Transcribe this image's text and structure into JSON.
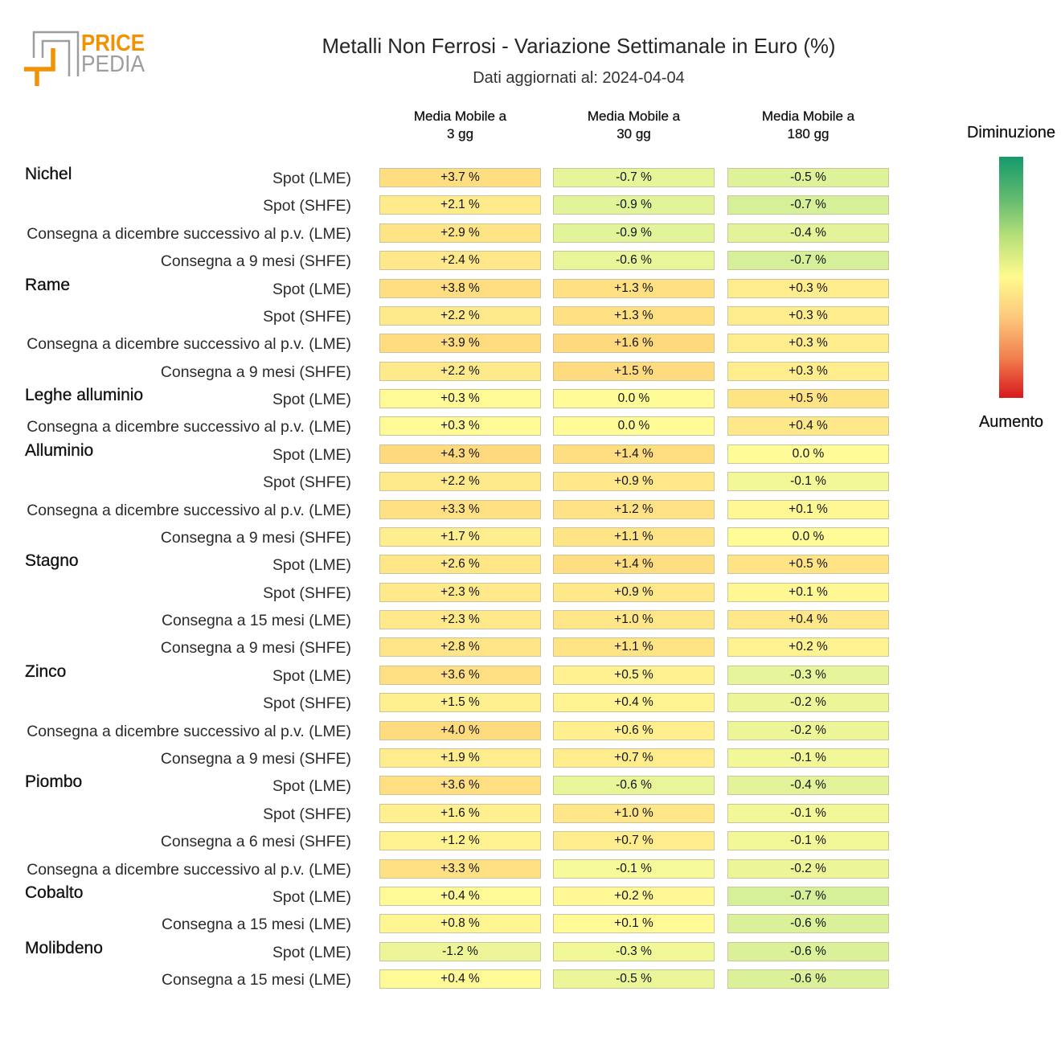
{
  "logo": {
    "word1": "PRICE",
    "word2": "PEDIA"
  },
  "colors": {
    "neutral": "#FFFC98",
    "increase": "#FFD97E",
    "decrease": "#D6F099",
    "cell_border": "#C9C49C",
    "logo_orange": "#F39200",
    "logo_grey": "#9D9D9C",
    "legend_gradient": [
      "#169A6B",
      "#5EB96F",
      "#B9E07A",
      "#FFFA8E",
      "#FDC87C",
      "#F1804F",
      "#D7191C"
    ]
  },
  "chart_data": {
    "type": "heatmap",
    "title": "Metalli Non Ferrosi - Variazione Settimanale in Euro (%)",
    "subtitle": "Dati aggiornati al: 2024-04-04",
    "columns": [
      {
        "line1": "Media Mobile a",
        "line2": "3 gg"
      },
      {
        "line1": "Media Mobile a",
        "line2": "30 gg"
      },
      {
        "line1": "Media Mobile a",
        "line2": "180 gg"
      }
    ],
    "legend": {
      "top": "Diminuzione",
      "bottom": "Aumento"
    },
    "groups": [
      {
        "name": "Nichel",
        "rows": [
          {
            "label": "Spot (LME)",
            "values": [
              3.7,
              -0.7,
              -0.5
            ],
            "cells": [
              "+3.7 %",
              "-0.7 %",
              "-0.5 %"
            ]
          },
          {
            "label": "Spot (SHFE)",
            "values": [
              2.1,
              -0.9,
              -0.7
            ],
            "cells": [
              "+2.1 %",
              "-0.9 %",
              "-0.7 %"
            ]
          },
          {
            "label": "Consegna a dicembre successivo al p.v. (LME)",
            "values": [
              2.9,
              -0.9,
              -0.4
            ],
            "cells": [
              "+2.9 %",
              "-0.9 %",
              "-0.4 %"
            ]
          },
          {
            "label": "Consegna a 9 mesi (SHFE)",
            "values": [
              2.4,
              -0.6,
              -0.7
            ],
            "cells": [
              "+2.4 %",
              "-0.6 %",
              "-0.7 %"
            ]
          }
        ]
      },
      {
        "name": "Rame",
        "rows": [
          {
            "label": "Spot (LME)",
            "values": [
              3.8,
              1.3,
              0.3
            ],
            "cells": [
              "+3.8 %",
              "+1.3 %",
              "+0.3 %"
            ]
          },
          {
            "label": "Spot (SHFE)",
            "values": [
              2.2,
              1.3,
              0.3
            ],
            "cells": [
              "+2.2 %",
              "+1.3 %",
              "+0.3 %"
            ]
          },
          {
            "label": "Consegna a dicembre successivo al p.v. (LME)",
            "values": [
              3.9,
              1.6,
              0.3
            ],
            "cells": [
              "+3.9 %",
              "+1.6 %",
              "+0.3 %"
            ]
          },
          {
            "label": "Consegna a 9 mesi (SHFE)",
            "values": [
              2.2,
              1.5,
              0.3
            ],
            "cells": [
              "+2.2 %",
              "+1.5 %",
              "+0.3 %"
            ]
          }
        ]
      },
      {
        "name": "Leghe alluminio",
        "rows": [
          {
            "label": "Spot (LME)",
            "values": [
              0.3,
              0.0,
              0.5
            ],
            "cells": [
              "+0.3 %",
              "0.0 %",
              "+0.5 %"
            ]
          },
          {
            "label": "Consegna a dicembre successivo al p.v. (LME)",
            "values": [
              0.3,
              0.0,
              0.4
            ],
            "cells": [
              "+0.3 %",
              "0.0 %",
              "+0.4 %"
            ]
          }
        ]
      },
      {
        "name": "Alluminio",
        "rows": [
          {
            "label": "Spot (LME)",
            "values": [
              4.3,
              1.4,
              0.0
            ],
            "cells": [
              "+4.3 %",
              "+1.4 %",
              "0.0 %"
            ]
          },
          {
            "label": "Spot (SHFE)",
            "values": [
              2.2,
              0.9,
              -0.1
            ],
            "cells": [
              "+2.2 %",
              "+0.9 %",
              "-0.1 %"
            ]
          },
          {
            "label": "Consegna a dicembre successivo al p.v. (LME)",
            "values": [
              3.3,
              1.2,
              0.1
            ],
            "cells": [
              "+3.3 %",
              "+1.2 %",
              "+0.1 %"
            ]
          },
          {
            "label": "Consegna a 9 mesi (SHFE)",
            "values": [
              1.7,
              1.1,
              0.0
            ],
            "cells": [
              "+1.7 %",
              "+1.1 %",
              "0.0 %"
            ]
          }
        ]
      },
      {
        "name": "Stagno",
        "rows": [
          {
            "label": "Spot (LME)",
            "values": [
              2.6,
              1.4,
              0.5
            ],
            "cells": [
              "+2.6 %",
              "+1.4 %",
              "+0.5 %"
            ]
          },
          {
            "label": "Spot (SHFE)",
            "values": [
              2.3,
              0.9,
              0.1
            ],
            "cells": [
              "+2.3 %",
              "+0.9 %",
              "+0.1 %"
            ]
          },
          {
            "label": "Consegna a 15 mesi (LME)",
            "values": [
              2.3,
              1.0,
              0.4
            ],
            "cells": [
              "+2.3 %",
              "+1.0 %",
              "+0.4 %"
            ]
          },
          {
            "label": "Consegna a 9 mesi (SHFE)",
            "values": [
              2.8,
              1.1,
              0.2
            ],
            "cells": [
              "+2.8 %",
              "+1.1 %",
              "+0.2 %"
            ]
          }
        ]
      },
      {
        "name": "Zinco",
        "rows": [
          {
            "label": "Spot (LME)",
            "values": [
              3.6,
              0.5,
              -0.3
            ],
            "cells": [
              "+3.6 %",
              "+0.5 %",
              "-0.3 %"
            ]
          },
          {
            "label": "Spot (SHFE)",
            "values": [
              1.5,
              0.4,
              -0.2
            ],
            "cells": [
              "+1.5 %",
              "+0.4 %",
              "-0.2 %"
            ]
          },
          {
            "label": "Consegna a dicembre successivo al p.v. (LME)",
            "values": [
              4.0,
              0.6,
              -0.2
            ],
            "cells": [
              "+4.0 %",
              "+0.6 %",
              "-0.2 %"
            ]
          },
          {
            "label": "Consegna a 9 mesi (SHFE)",
            "values": [
              1.9,
              0.7,
              -0.1
            ],
            "cells": [
              "+1.9 %",
              "+0.7 %",
              "-0.1 %"
            ]
          }
        ]
      },
      {
        "name": "Piombo",
        "rows": [
          {
            "label": "Spot (LME)",
            "values": [
              3.6,
              -0.6,
              -0.4
            ],
            "cells": [
              "+3.6 %",
              "-0.6 %",
              "-0.4 %"
            ]
          },
          {
            "label": "Spot (SHFE)",
            "values": [
              1.6,
              1.0,
              -0.1
            ],
            "cells": [
              "+1.6 %",
              "+1.0 %",
              "-0.1 %"
            ]
          },
          {
            "label": "Consegna a 6 mesi (SHFE)",
            "values": [
              1.2,
              0.7,
              -0.1
            ],
            "cells": [
              "+1.2 %",
              "+0.7 %",
              "-0.1 %"
            ]
          },
          {
            "label": "Consegna a dicembre successivo al p.v. (LME)",
            "values": [
              3.3,
              -0.1,
              -0.2
            ],
            "cells": [
              "+3.3 %",
              "-0.1 %",
              "-0.2 %"
            ]
          }
        ]
      },
      {
        "name": "Cobalto",
        "rows": [
          {
            "label": "Spot (LME)",
            "values": [
              0.4,
              0.2,
              -0.7
            ],
            "cells": [
              "+0.4 %",
              "+0.2 %",
              "-0.7 %"
            ]
          },
          {
            "label": "Consegna a 15 mesi (LME)",
            "values": [
              0.8,
              0.1,
              -0.6
            ],
            "cells": [
              "+0.8 %",
              "+0.1 %",
              "-0.6 %"
            ]
          }
        ]
      },
      {
        "name": "Molibdeno",
        "rows": [
          {
            "label": "Spot (LME)",
            "values": [
              -1.2,
              -0.3,
              -0.6
            ],
            "cells": [
              "-1.2 %",
              "-0.3 %",
              "-0.6 %"
            ]
          },
          {
            "label": "Consegna a 15 mesi (LME)",
            "values": [
              0.4,
              -0.5,
              -0.6
            ],
            "cells": [
              "+0.4 %",
              "-0.5 %",
              "-0.6 %"
            ]
          }
        ]
      }
    ]
  }
}
